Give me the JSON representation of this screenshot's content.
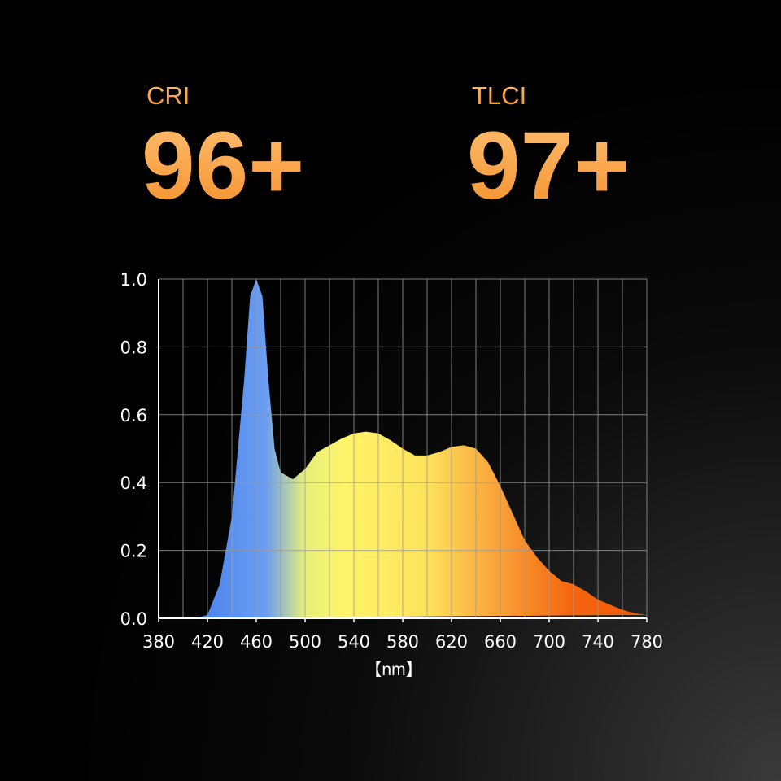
{
  "metrics": [
    {
      "label": "CRI",
      "value": "96+"
    },
    {
      "label": "TLCI",
      "value": "97+"
    }
  ],
  "chart_data": {
    "type": "area",
    "x_label": "【nm】",
    "x": [
      380,
      390,
      400,
      410,
      420,
      430,
      440,
      450,
      455,
      460,
      465,
      470,
      475,
      480,
      490,
      500,
      510,
      520,
      530,
      540,
      550,
      560,
      570,
      580,
      590,
      600,
      610,
      620,
      630,
      640,
      650,
      660,
      670,
      680,
      690,
      700,
      710,
      720,
      730,
      740,
      750,
      760,
      770,
      780
    ],
    "y": [
      0,
      0,
      0,
      0,
      0.01,
      0.1,
      0.3,
      0.7,
      0.95,
      1.0,
      0.95,
      0.7,
      0.5,
      0.43,
      0.41,
      0.44,
      0.49,
      0.51,
      0.53,
      0.545,
      0.55,
      0.545,
      0.525,
      0.5,
      0.48,
      0.48,
      0.49,
      0.505,
      0.51,
      0.5,
      0.46,
      0.39,
      0.31,
      0.23,
      0.18,
      0.14,
      0.11,
      0.1,
      0.08,
      0.055,
      0.04,
      0.025,
      0.015,
      0.01
    ],
    "xlim": [
      380,
      780
    ],
    "ylim": [
      0,
      1
    ],
    "xticks": [
      380,
      420,
      460,
      500,
      540,
      580,
      620,
      660,
      700,
      740,
      780
    ],
    "xgrid": [
      380,
      400,
      420,
      440,
      460,
      480,
      500,
      520,
      540,
      560,
      580,
      600,
      620,
      640,
      660,
      680,
      700,
      720,
      740,
      760,
      780
    ],
    "yticks": [
      {
        "value": 0,
        "label": "0.0"
      },
      0.2,
      0.4,
      0.6,
      0.8,
      {
        "value": 1,
        "label": "1.0"
      }
    ],
    "grid": true
  }
}
